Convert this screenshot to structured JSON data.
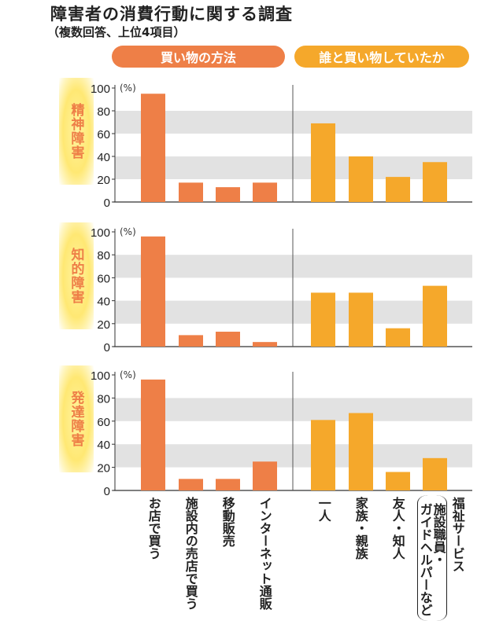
{
  "title": "障害者の消費行動に関する調査",
  "subtitle": "（複数回答、上位4項目）",
  "groups": {
    "left": "買い物の方法",
    "right": "誰と買い物していたか"
  },
  "colors": {
    "left": "#ee7f47",
    "right": "#f5a82b",
    "band": "#e2e2e2",
    "label_bg": "#ffe873"
  },
  "chart_data": {
    "type": "bar",
    "unit": "(%)",
    "ylim": [
      0,
      100
    ],
    "yticks": [
      "0",
      "20",
      "40",
      "60",
      "80",
      "100"
    ],
    "categories_left": [
      "お店で買う",
      "施設内の売店で買う",
      "移動販売",
      "インターネット通販"
    ],
    "categories_right": [
      "一人",
      "家族・親族",
      "友人・知人"
    ],
    "last_category": {
      "main": "福祉サービス",
      "note1": "施設職員・",
      "note2": "ガイドヘルパーなど"
    },
    "series": [
      {
        "name": "精神障害",
        "left": [
          95,
          17,
          13,
          17
        ],
        "right": [
          69,
          40,
          22,
          35
        ]
      },
      {
        "name": "知的障害",
        "left": [
          96,
          10,
          13,
          4
        ],
        "right": [
          47,
          47,
          16,
          53
        ]
      },
      {
        "name": "発達障害",
        "left": [
          96,
          10,
          10,
          25
        ],
        "right": [
          61,
          67,
          16,
          28
        ]
      }
    ]
  }
}
